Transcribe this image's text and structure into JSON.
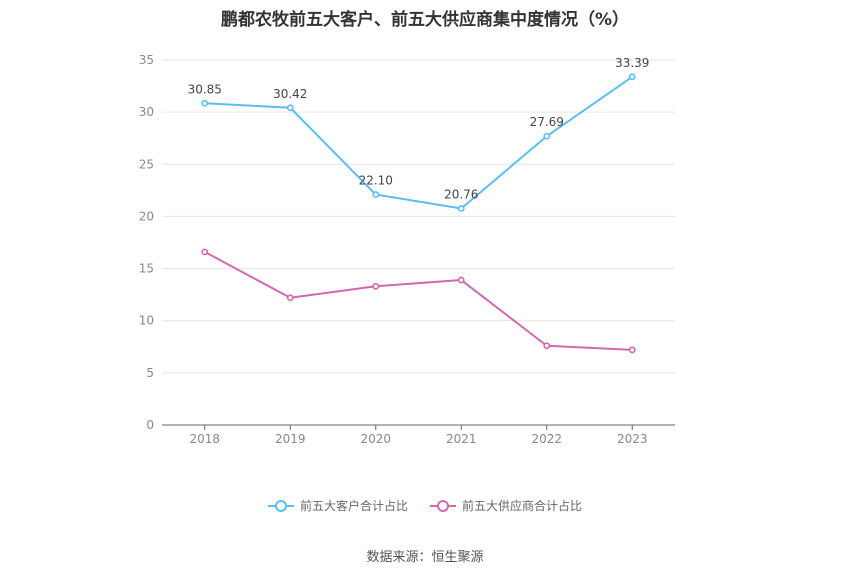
{
  "chart_data": {
    "type": "line",
    "title": "鹏都农牧前五大客户、前五大供应商集中度情况（%）",
    "categories": [
      "2018",
      "2019",
      "2020",
      "2021",
      "2022",
      "2023"
    ],
    "ylim": [
      0,
      35
    ],
    "yticks": [
      "0",
      "5",
      "10",
      "15",
      "20",
      "25",
      "30",
      "35"
    ],
    "grid": true,
    "legend_position": "bottom",
    "series": [
      {
        "name": "前五大客户合计占比",
        "color": "#5bbdf0",
        "values": [
          30.85,
          30.42,
          22.1,
          20.76,
          27.69,
          33.39
        ],
        "labels": [
          "30.85",
          "30.42",
          "22.10",
          "20.76",
          "27.69",
          "33.39"
        ]
      },
      {
        "name": "前五大供应商合计占比",
        "color": "#d268ae",
        "values": [
          16.6,
          12.2,
          13.3,
          13.9,
          7.6,
          7.2
        ]
      }
    ]
  },
  "source": "数据来源：恒生聚源"
}
